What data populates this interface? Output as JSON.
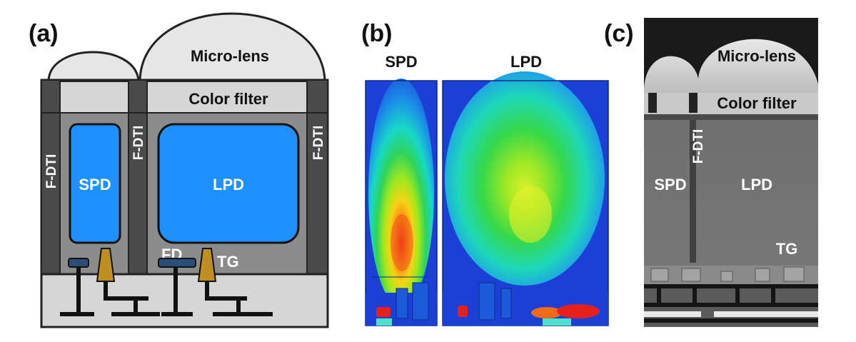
{
  "panels": {
    "a": {
      "label": "(a)",
      "micro_lens": "Micro-lens",
      "color_filter": "Color filter",
      "fdti": "F-DTI",
      "spd": "SPD",
      "lpd": "LPD",
      "fd": "FD",
      "tg": "TG"
    },
    "b": {
      "label": "(b)",
      "spd": "SPD",
      "lpd": "LPD"
    },
    "c": {
      "label": "(c)",
      "micro_lens": "Micro-lens",
      "color_filter": "Color filter",
      "fdti": "F-DTI",
      "spd": "SPD",
      "lpd": "LPD",
      "tg": "TG"
    }
  },
  "colors": {
    "photodiode": "#1e90ff",
    "dti": "#4a4a4a",
    "silicon": "#8c8c8c",
    "gate": "#c08f22",
    "lens": "#e6e6e6"
  }
}
